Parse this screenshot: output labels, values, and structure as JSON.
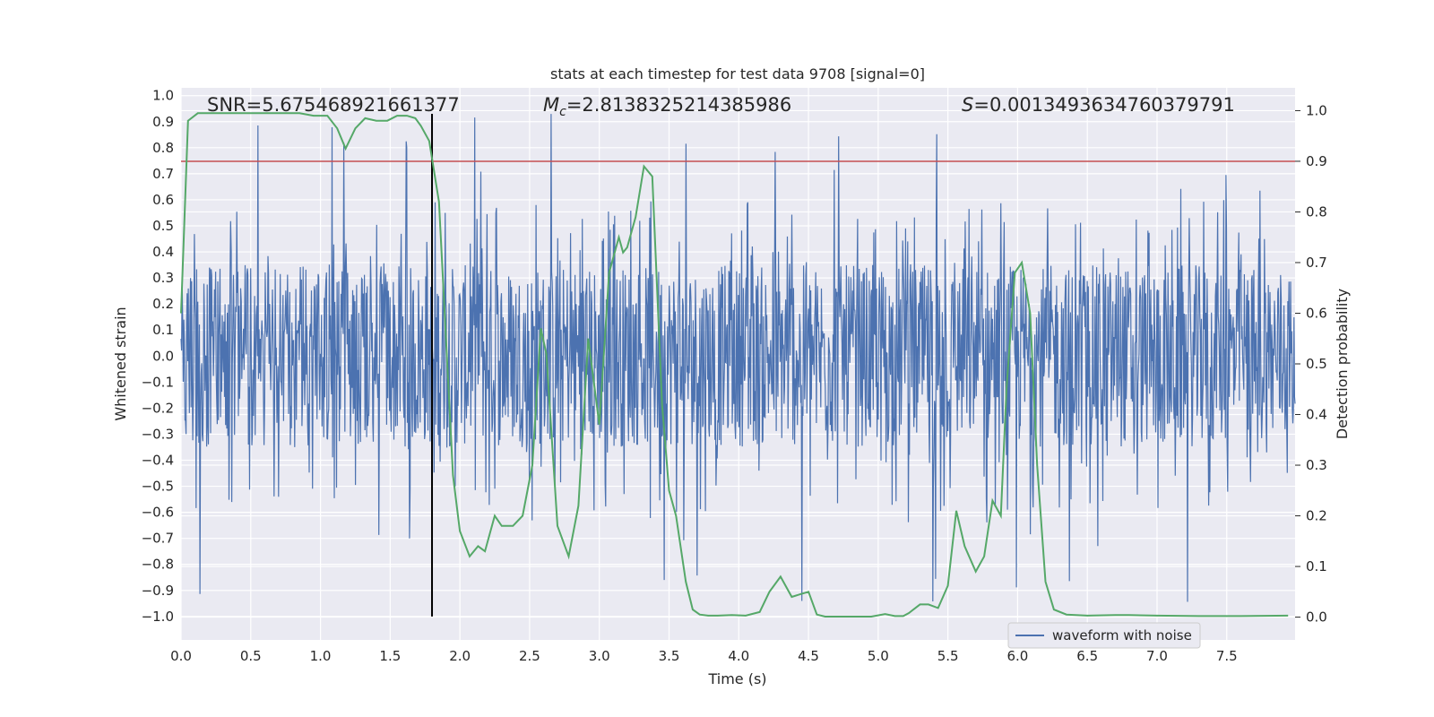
{
  "chart_data": {
    "type": "line",
    "title": "stats at each timestep for test data 9708 [signal=0]",
    "xlabel": "Time (s)",
    "ylabel": "Whitened strain",
    "y2label": "Detection probability",
    "xlim": [
      0.0,
      7.99
    ],
    "ylim": [
      -1.09,
      1.03
    ],
    "y2lim": [
      -0.045,
      1.045
    ],
    "x_ticks": [
      "0.0",
      "0.5",
      "1.0",
      "1.5",
      "2.0",
      "2.5",
      "3.0",
      "3.5",
      "4.0",
      "4.5",
      "5.0",
      "5.5",
      "6.0",
      "6.5",
      "7.0",
      "7.5"
    ],
    "y_ticks": [
      "1.0",
      "0.9",
      "0.8",
      "0.7",
      "0.6",
      "0.5",
      "0.4",
      "0.3",
      "0.2",
      "0.1",
      "0.0",
      "−0.1",
      "−0.2",
      "−0.3",
      "−0.4",
      "−0.5",
      "−0.6",
      "−0.7",
      "−0.8",
      "−0.9",
      "−1.0"
    ],
    "y2_ticks": [
      "1.0",
      "0.9",
      "0.8",
      "0.7",
      "0.6",
      "0.5",
      "0.4",
      "0.3",
      "0.2",
      "0.1",
      "0.0"
    ],
    "annotations": {
      "snr": "SNR=5.675468921661377",
      "mc_symbol": "M",
      "mc_sub": "c",
      "mc_value": "=2.8138325214385986",
      "s_symbol": "S",
      "s_value": "=0.0013493634760379791"
    },
    "threshold_probability": 0.9,
    "vertical_marker_time": 1.8,
    "waveform": {
      "name": "waveform with noise",
      "color": "#4c72b0",
      "samples": 2000,
      "typical_abs_amplitude": 0.35,
      "peak_max": 0.93,
      "peak_min": -1.0
    },
    "probability_series": {
      "color": "#55a868",
      "t": [
        0.0,
        0.05,
        0.12,
        0.3,
        0.6,
        0.85,
        0.95,
        1.05,
        1.12,
        1.18,
        1.25,
        1.32,
        1.4,
        1.48,
        1.55,
        1.62,
        1.68,
        1.72,
        1.78,
        1.85,
        1.9,
        1.95,
        2.0,
        2.07,
        2.13,
        2.18,
        2.25,
        2.3,
        2.38,
        2.45,
        2.52,
        2.58,
        2.62,
        2.7,
        2.78,
        2.85,
        2.92,
        3.0,
        3.07,
        3.14,
        3.17,
        3.2,
        3.26,
        3.32,
        3.38,
        3.45,
        3.5,
        3.55,
        3.62,
        3.67,
        3.72,
        3.78,
        3.85,
        3.95,
        4.05,
        4.15,
        4.22,
        4.3,
        4.38,
        4.44,
        4.5,
        4.56,
        4.62,
        4.8,
        4.95,
        5.05,
        5.12,
        5.18,
        5.22,
        5.3,
        5.36,
        5.43,
        5.5,
        5.56,
        5.62,
        5.7,
        5.76,
        5.82,
        5.88,
        5.92,
        5.98,
        6.03,
        6.09,
        6.14,
        6.2,
        6.26,
        6.35,
        6.5,
        6.7,
        6.8,
        7.0,
        7.3,
        7.6,
        7.94
      ],
      "p": [
        0.6,
        0.98,
        0.995,
        0.995,
        0.995,
        0.995,
        0.99,
        0.99,
        0.965,
        0.925,
        0.965,
        0.985,
        0.98,
        0.98,
        0.99,
        0.99,
        0.985,
        0.97,
        0.94,
        0.82,
        0.55,
        0.28,
        0.17,
        0.12,
        0.14,
        0.13,
        0.2,
        0.18,
        0.18,
        0.2,
        0.3,
        0.57,
        0.52,
        0.18,
        0.12,
        0.22,
        0.55,
        0.38,
        0.68,
        0.75,
        0.72,
        0.73,
        0.79,
        0.89,
        0.87,
        0.42,
        0.25,
        0.2,
        0.07,
        0.015,
        0.005,
        0.003,
        0.003,
        0.004,
        0.003,
        0.01,
        0.05,
        0.08,
        0.04,
        0.045,
        0.05,
        0.005,
        0.001,
        0.001,
        0.001,
        0.006,
        0.002,
        0.002,
        0.008,
        0.025,
        0.025,
        0.018,
        0.062,
        0.21,
        0.14,
        0.09,
        0.12,
        0.23,
        0.2,
        0.45,
        0.68,
        0.7,
        0.6,
        0.3,
        0.07,
        0.015,
        0.005,
        0.003,
        0.004,
        0.004,
        0.003,
        0.002,
        0.002,
        0.003
      ]
    }
  },
  "legend": {
    "label": "waveform with noise"
  }
}
